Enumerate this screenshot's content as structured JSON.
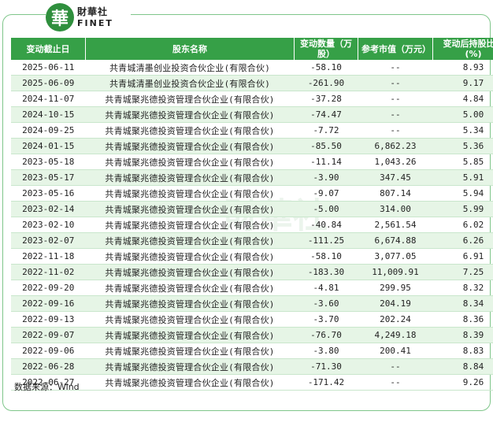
{
  "brand": {
    "mark": "華",
    "name_cn": "財華社",
    "name_en": "FINET"
  },
  "watermark": "財華社",
  "table": {
    "headers": {
      "date": "变动截止日",
      "name": "股东名称",
      "change": "变动数量（万股）",
      "value": "参考市值（万元）",
      "ratio": "变动后持股比例(%)"
    },
    "rows": [
      {
        "date": "2025-06-11",
        "name": "共青城清墨创业投资合伙企业(有限合伙)",
        "change": "-58.10",
        "value": "--",
        "ratio": "8.93"
      },
      {
        "date": "2025-06-09",
        "name": "共青城清墨创业投资合伙企业(有限合伙)",
        "change": "-261.90",
        "value": "--",
        "ratio": "9.17"
      },
      {
        "date": "2024-11-07",
        "name": "共青城聚兆德投资管理合伙企业(有限合伙)",
        "change": "-37.28",
        "value": "--",
        "ratio": "4.84"
      },
      {
        "date": "2024-10-15",
        "name": "共青城聚兆德投资管理合伙企业(有限合伙)",
        "change": "-74.47",
        "value": "--",
        "ratio": "5.00"
      },
      {
        "date": "2024-09-25",
        "name": "共青城聚兆德投资管理合伙企业(有限合伙)",
        "change": "-7.72",
        "value": "--",
        "ratio": "5.34"
      },
      {
        "date": "2024-01-15",
        "name": "共青城聚兆德投资管理合伙企业(有限合伙)",
        "change": "-85.50",
        "value": "6,862.23",
        "ratio": "5.36"
      },
      {
        "date": "2023-05-18",
        "name": "共青城聚兆德投资管理合伙企业(有限合伙)",
        "change": "-11.14",
        "value": "1,043.26",
        "ratio": "5.85"
      },
      {
        "date": "2023-05-17",
        "name": "共青城聚兆德投资管理合伙企业(有限合伙)",
        "change": "-3.90",
        "value": "347.45",
        "ratio": "5.91"
      },
      {
        "date": "2023-05-16",
        "name": "共青城聚兆德投资管理合伙企业(有限合伙)",
        "change": "-9.07",
        "value": "807.14",
        "ratio": "5.94"
      },
      {
        "date": "2023-02-14",
        "name": "共青城聚兆德投资管理合伙企业(有限合伙)",
        "change": "-5.00",
        "value": "314.00",
        "ratio": "5.99"
      },
      {
        "date": "2023-02-10",
        "name": "共青城聚兆德投资管理合伙企业(有限合伙)",
        "change": "-40.84",
        "value": "2,561.54",
        "ratio": "6.02"
      },
      {
        "date": "2023-02-07",
        "name": "共青城聚兆德投资管理合伙企业(有限合伙)",
        "change": "-111.25",
        "value": "6,674.88",
        "ratio": "6.26"
      },
      {
        "date": "2022-11-18",
        "name": "共青城聚兆德投资管理合伙企业(有限合伙)",
        "change": "-58.10",
        "value": "3,077.05",
        "ratio": "6.91"
      },
      {
        "date": "2022-11-02",
        "name": "共青城聚兆德投资管理合伙企业(有限合伙)",
        "change": "-183.30",
        "value": "11,009.91",
        "ratio": "7.25"
      },
      {
        "date": "2022-09-20",
        "name": "共青城聚兆德投资管理合伙企业(有限合伙)",
        "change": "-4.81",
        "value": "299.95",
        "ratio": "8.32"
      },
      {
        "date": "2022-09-16",
        "name": "共青城聚兆德投资管理合伙企业(有限合伙)",
        "change": "-3.60",
        "value": "204.19",
        "ratio": "8.34"
      },
      {
        "date": "2022-09-13",
        "name": "共青城聚兆德投资管理合伙企业(有限合伙)",
        "change": "-3.70",
        "value": "202.24",
        "ratio": "8.36"
      },
      {
        "date": "2022-09-07",
        "name": "共青城聚兆德投资管理合伙企业(有限合伙)",
        "change": "-76.70",
        "value": "4,249.18",
        "ratio": "8.39"
      },
      {
        "date": "2022-09-06",
        "name": "共青城聚兆德投资管理合伙企业(有限合伙)",
        "change": "-3.80",
        "value": "200.41",
        "ratio": "8.83"
      },
      {
        "date": "2022-06-28",
        "name": "共青城聚兆德投资管理合伙企业(有限合伙)",
        "change": "-71.30",
        "value": "--",
        "ratio": "8.84"
      },
      {
        "date": "2022-06-27",
        "name": "共青城聚兆德投资管理合伙企业(有限合伙)",
        "change": "-171.42",
        "value": "--",
        "ratio": "9.26"
      }
    ]
  },
  "source": "数据来源：Wind",
  "colors": {
    "header_bg": "#36a047",
    "stripe": "#e6f5e6",
    "border": "#7fc68a"
  }
}
